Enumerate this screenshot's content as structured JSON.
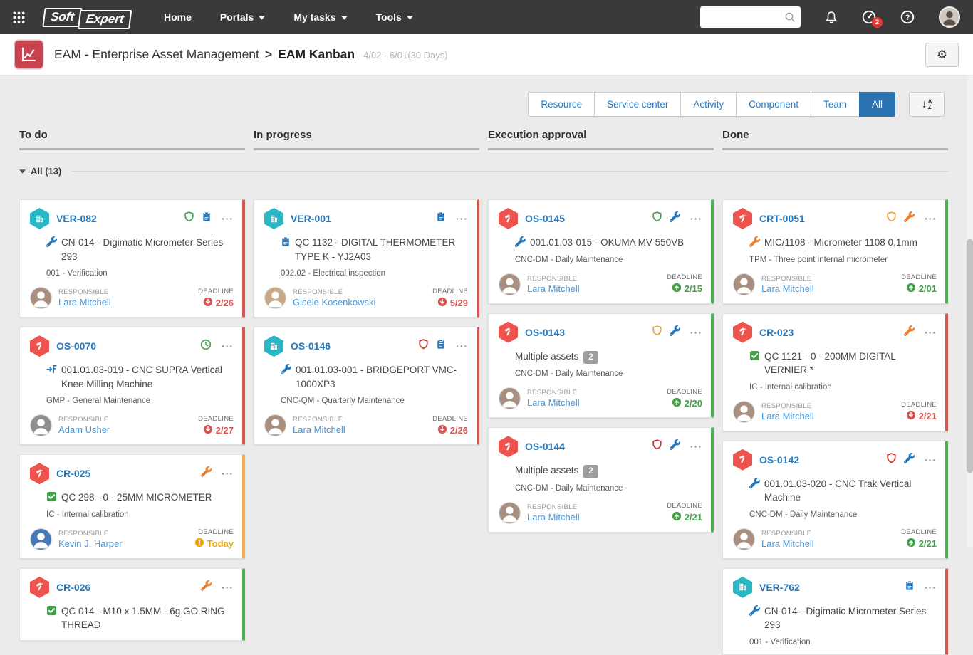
{
  "navbar": {
    "logo_part1": "Soft",
    "logo_part2": "Expert",
    "menu": [
      {
        "label": "Home",
        "dropdown": false
      },
      {
        "label": "Portals",
        "dropdown": true
      },
      {
        "label": "My tasks",
        "dropdown": true
      },
      {
        "label": "Tools",
        "dropdown": true
      }
    ],
    "search_value": "",
    "notification_badge": "2"
  },
  "header": {
    "breadcrumb_root": "EAM - Enterprise Asset Management",
    "breadcrumb_separator": ">",
    "breadcrumb_current": "EAM Kanban",
    "date_range": "4/02 - 6/01(30 Days)"
  },
  "filters": {
    "tabs": [
      {
        "label": "Resource",
        "active": false
      },
      {
        "label": "Service center",
        "active": false
      },
      {
        "label": "Activity",
        "active": false
      },
      {
        "label": "Component",
        "active": false
      },
      {
        "label": "Team",
        "active": false
      },
      {
        "label": "All",
        "active": true
      }
    ]
  },
  "board": {
    "columns": [
      "To do",
      "In progress",
      "Execution approval",
      "Done"
    ],
    "group_label": "All (13)",
    "labels": {
      "responsible": "RESPONSIBLE",
      "deadline": "DEADLINE"
    }
  },
  "colors": {
    "accent_red": "#d9534f",
    "accent_green": "#4caf50",
    "accent_orange": "#f0ad4e",
    "hex_teal": "#29b6c5",
    "hex_red": "#ee544e",
    "id_blue": "#2678be",
    "link_blue": "#4a95d6",
    "tab_active_blue": "#2a72b0",
    "deadline_overdue": "#d9534f",
    "deadline_ok": "#43a047",
    "deadline_today": "#f0a30a"
  },
  "cards": [
    {
      "column": 0,
      "id": "VER-082",
      "type_icon": "building",
      "hex": "teal",
      "flags": [
        {
          "icon": "shield",
          "color": "#43a047"
        },
        {
          "icon": "clipboard",
          "color": "#2678be"
        }
      ],
      "title_icon": "wrench",
      "title_icon_color": "#2678be",
      "title": "CN-014 - Digimatic Micrometer Series 293",
      "badge": null,
      "subtitle": "001 - Verification",
      "responsible": "Lara Mitchell",
      "avatar_color": "#a98f80",
      "deadline": {
        "status": "overdue",
        "text": "2/26"
      },
      "accent": "red"
    },
    {
      "column": 0,
      "id": "OS-0070",
      "type_icon": "hammer",
      "hex": "red",
      "flags": [
        {
          "icon": "clock",
          "color": "#43a047"
        }
      ],
      "title_icon": "transfer",
      "title_icon_color": "#2678be",
      "title": "001.01.03-019 - CNC SUPRA Vertical Knee Milling Machine",
      "badge": null,
      "subtitle": "GMP - General Maintenance",
      "responsible": "Adam Usher",
      "avatar_color": "#8f8f8f",
      "deadline": {
        "status": "overdue",
        "text": "2/27"
      },
      "accent": "red"
    },
    {
      "column": 0,
      "id": "CR-025",
      "type_icon": "gavel",
      "hex": "red",
      "flags": [
        {
          "icon": "wrench",
          "color": "#e87e2b"
        }
      ],
      "title_icon": "check",
      "title_icon_color": "#43a047",
      "title": "QC 298 - 0 - 25MM MICROMETER",
      "badge": null,
      "subtitle": "IC - Internal calibration",
      "responsible": "Kevin J. Harper",
      "avatar_color": "#4877b8",
      "deadline": {
        "status": "today",
        "text": "Today"
      },
      "accent": "orange"
    },
    {
      "column": 0,
      "id": "CR-026",
      "type_icon": "gavel",
      "hex": "red",
      "flags": [
        {
          "icon": "wrench",
          "color": "#e87e2b"
        }
      ],
      "title_icon": "check",
      "title_icon_color": "#43a047",
      "title": "QC 014 - M10 x 1.5MM - 6g GO RING THREAD",
      "badge": null,
      "subtitle": null,
      "responsible": null,
      "avatar_color": null,
      "deadline": null,
      "accent": "green"
    },
    {
      "column": 1,
      "id": "VER-001",
      "type_icon": "building",
      "hex": "teal",
      "flags": [
        {
          "icon": "clipboard",
          "color": "#2678be"
        }
      ],
      "title_icon": "clipboard",
      "title_icon_color": "#2678be",
      "title": "QC 1132 - DIGITAL THERMOMETER TYPE K - YJ2A03",
      "badge": null,
      "subtitle": "002.02 - Electrical inspection",
      "responsible": "Gisele Kosenkowski",
      "avatar_color": "#c7a98a",
      "deadline": {
        "status": "overdue",
        "text": "5/29"
      },
      "accent": "red"
    },
    {
      "column": 1,
      "id": "OS-0146",
      "type_icon": "building",
      "hex": "teal",
      "flags": [
        {
          "icon": "shield",
          "color": "#c9302c"
        },
        {
          "icon": "clipboard",
          "color": "#2678be"
        }
      ],
      "title_icon": "wrench",
      "title_icon_color": "#2678be",
      "title": "001.01.03-001 - BRIDGEPORT VMC-1000XP3",
      "badge": null,
      "subtitle": "CNC-QM - Quarterly Maintenance",
      "responsible": "Lara Mitchell",
      "avatar_color": "#a98f80",
      "deadline": {
        "status": "overdue",
        "text": "2/26"
      },
      "accent": "red"
    },
    {
      "column": 2,
      "id": "OS-0145",
      "type_icon": "hammer",
      "hex": "red",
      "flags": [
        {
          "icon": "shield",
          "color": "#43a047"
        },
        {
          "icon": "wrench",
          "color": "#2678be"
        }
      ],
      "title_icon": "wrench",
      "title_icon_color": "#2678be",
      "title": "001.01.03-015 - OKUMA MV-550VB",
      "badge": null,
      "subtitle": "CNC-DM - Daily Maintenance",
      "responsible": "Lara Mitchell",
      "avatar_color": "#a98f80",
      "deadline": {
        "status": "ok",
        "text": "2/15"
      },
      "accent": "green"
    },
    {
      "column": 2,
      "id": "OS-0143",
      "type_icon": "hammer",
      "hex": "red",
      "flags": [
        {
          "icon": "shield",
          "color": "#e8a33d"
        },
        {
          "icon": "wrench",
          "color": "#2678be"
        }
      ],
      "title_icon": null,
      "title_icon_color": null,
      "title": "Multiple assets",
      "badge": "2",
      "subtitle": "CNC-DM - Daily Maintenance",
      "responsible": "Lara Mitchell",
      "avatar_color": "#a98f80",
      "deadline": {
        "status": "ok",
        "text": "2/20"
      },
      "accent": "green"
    },
    {
      "column": 2,
      "id": "OS-0144",
      "type_icon": "hammer",
      "hex": "red",
      "flags": [
        {
          "icon": "shield",
          "color": "#c9302c"
        },
        {
          "icon": "wrench",
          "color": "#2678be"
        }
      ],
      "title_icon": null,
      "title_icon_color": null,
      "title": "Multiple assets",
      "badge": "2",
      "subtitle": "CNC-DM - Daily Maintenance",
      "responsible": "Lara Mitchell",
      "avatar_color": "#a98f80",
      "deadline": {
        "status": "ok",
        "text": "2/21"
      },
      "accent": "green"
    },
    {
      "column": 3,
      "id": "CRT-0051",
      "type_icon": "gavel",
      "hex": "red",
      "flags": [
        {
          "icon": "shield",
          "color": "#e8a33d"
        },
        {
          "icon": "wrench",
          "color": "#e87e2b"
        }
      ],
      "title_icon": "wrench",
      "title_icon_color": "#e87e2b",
      "title": "MIC/1108 - Micrometer 1108 0,1mm",
      "badge": null,
      "subtitle": "TPM - Three point internal micrometer",
      "responsible": "Lara Mitchell",
      "avatar_color": "#a98f80",
      "deadline": {
        "status": "ok",
        "text": "2/01"
      },
      "accent": "green"
    },
    {
      "column": 3,
      "id": "CR-023",
      "type_icon": "gavel",
      "hex": "red",
      "flags": [
        {
          "icon": "wrench",
          "color": "#e87e2b"
        }
      ],
      "title_icon": "check",
      "title_icon_color": "#43a047",
      "title": "QC 1121 - 0 - 200MM DIGITAL VERNIER *",
      "badge": null,
      "subtitle": "IC - Internal calibration",
      "responsible": "Lara Mitchell",
      "avatar_color": "#a98f80",
      "deadline": {
        "status": "overdue",
        "text": "2/21"
      },
      "accent": "red"
    },
    {
      "column": 3,
      "id": "OS-0142",
      "type_icon": "hammer",
      "hex": "red",
      "flags": [
        {
          "icon": "shield",
          "color": "#c9302c"
        },
        {
          "icon": "wrench",
          "color": "#2678be"
        }
      ],
      "title_icon": "wrench",
      "title_icon_color": "#2678be",
      "title": "001.01.03-020 - CNC Trak Vertical Machine",
      "badge": null,
      "subtitle": "CNC-DM - Daily Maintenance",
      "responsible": "Lara Mitchell",
      "avatar_color": "#a98f80",
      "deadline": {
        "status": "ok",
        "text": "2/21"
      },
      "accent": "green"
    },
    {
      "column": 3,
      "id": "VER-762",
      "type_icon": "building",
      "hex": "teal",
      "flags": [
        {
          "icon": "clipboard",
          "color": "#2678be"
        }
      ],
      "title_icon": "wrench",
      "title_icon_color": "#2678be",
      "title": "CN-014 - Digimatic Micrometer Series 293",
      "badge": null,
      "subtitle": "001 - Verification",
      "responsible": null,
      "avatar_color": null,
      "deadline": null,
      "accent": "red"
    }
  ]
}
